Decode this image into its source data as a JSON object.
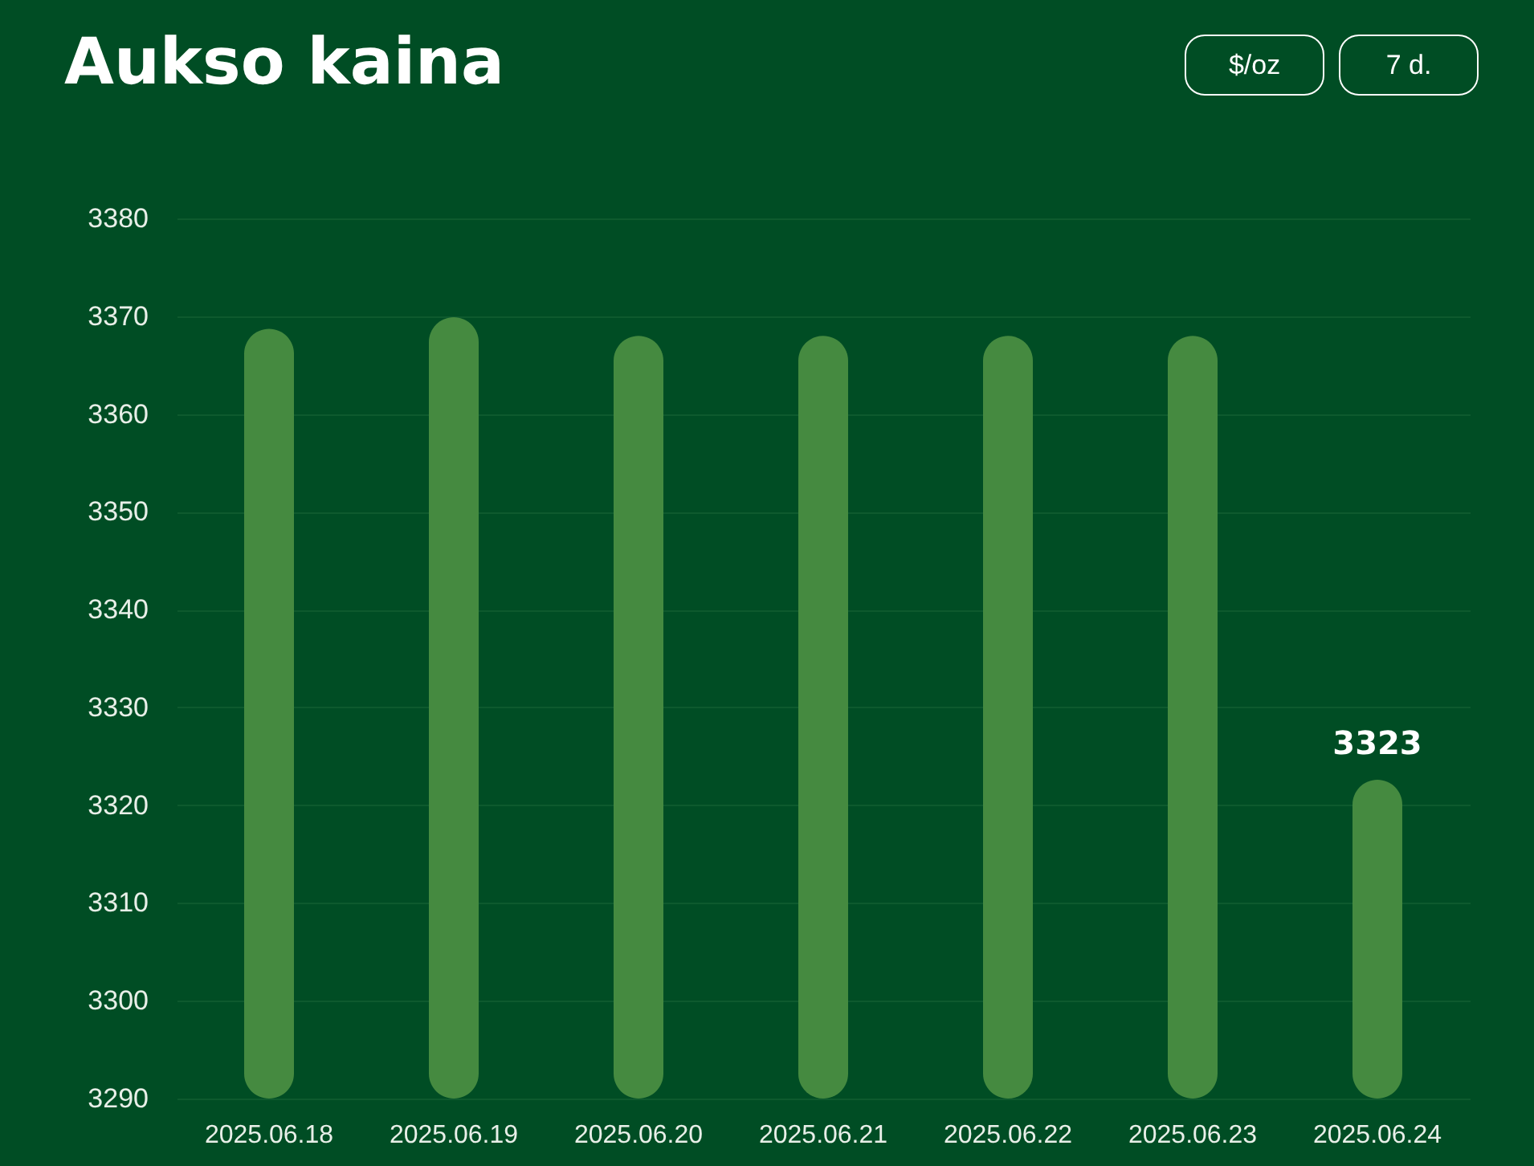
{
  "chart_data": {
    "type": "bar",
    "title": "Aukso kaina",
    "categories": [
      "2025.06.18",
      "2025.06.19",
      "2025.06.20",
      "2025.06.21",
      "2025.06.22",
      "2025.06.23",
      "2025.06.24"
    ],
    "values": [
      3368.7,
      3369.9,
      3368.0,
      3368.0,
      3368.0,
      3368.0,
      3322.6
    ],
    "value_labels": [
      null,
      null,
      null,
      null,
      null,
      null,
      "3323"
    ],
    "color": "#458a40",
    "ylim": [
      3290,
      3380
    ],
    "yticks": [
      3290,
      3300,
      3310,
      3320,
      3330,
      3340,
      3350,
      3360,
      3370,
      3380
    ],
    "grid": "y",
    "annotations": [
      "$/oz",
      "7 d."
    ]
  }
}
